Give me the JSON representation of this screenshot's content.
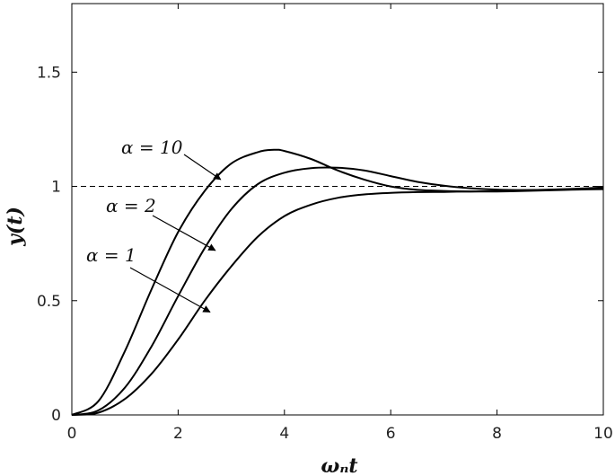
{
  "chart_data": {
    "type": "line",
    "xlabel": "ωₙt",
    "ylabel": "y(t)",
    "xlim": [
      0,
      10
    ],
    "ylim": [
      0,
      1.8
    ],
    "xticks": [
      0,
      2,
      4,
      6,
      8,
      10
    ],
    "yticks": [
      0,
      0.5,
      1,
      1.5
    ],
    "ytick_labels": [
      "0",
      "0.5",
      "1",
      "1.5"
    ],
    "grid": false,
    "reference_line": {
      "y": 1,
      "style": "dashed"
    },
    "series": [
      {
        "name": "α = 10",
        "x": [
          0,
          0.5,
          1,
          1.5,
          2,
          2.5,
          3,
          3.5,
          3.8,
          4,
          4.5,
          5,
          5.5,
          6,
          6.5,
          7,
          7.5,
          8,
          8.5,
          9,
          9.5,
          10
        ],
        "y": [
          0,
          0.06,
          0.28,
          0.55,
          0.8,
          0.98,
          1.1,
          1.15,
          1.16,
          1.155,
          1.12,
          1.07,
          1.03,
          1.0,
          0.985,
          0.98,
          0.978,
          0.978,
          0.98,
          0.983,
          0.986,
          0.988
        ]
      },
      {
        "name": "α = 2",
        "x": [
          0,
          0.5,
          1,
          1.5,
          2,
          2.5,
          3,
          3.5,
          4,
          4.5,
          5,
          5.5,
          6,
          6.5,
          7,
          7.5,
          8,
          8.5,
          9,
          9.5,
          10
        ],
        "y": [
          0,
          0.02,
          0.12,
          0.3,
          0.52,
          0.73,
          0.9,
          1.01,
          1.06,
          1.08,
          1.082,
          1.07,
          1.045,
          1.02,
          1.003,
          0.992,
          0.986,
          0.984,
          0.985,
          0.988,
          0.992
        ]
      },
      {
        "name": "α = 1",
        "x": [
          0,
          0.5,
          1,
          1.5,
          2,
          2.5,
          3,
          3.5,
          4,
          4.5,
          5,
          5.5,
          6,
          6.5,
          7,
          7.5,
          8,
          8.5,
          9,
          9.5,
          10
        ],
        "y": [
          0,
          0.01,
          0.07,
          0.18,
          0.33,
          0.5,
          0.65,
          0.78,
          0.87,
          0.92,
          0.95,
          0.965,
          0.972,
          0.975,
          0.976,
          0.978,
          0.98,
          0.983,
          0.986,
          0.99,
          0.995
        ]
      }
    ],
    "annotations": [
      {
        "text": "α = 10",
        "series": "α = 10",
        "arrow_to": [
          2.8,
          1.03
        ]
      },
      {
        "text": "α = 2",
        "series": "α = 2",
        "arrow_to": [
          2.7,
          0.72
        ]
      },
      {
        "text": "α = 1",
        "series": "α = 1",
        "arrow_to": [
          2.6,
          0.45
        ]
      }
    ]
  }
}
